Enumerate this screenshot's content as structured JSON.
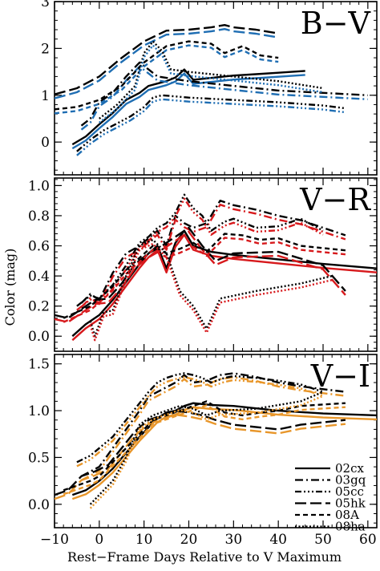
{
  "chart_data": {
    "type": "line",
    "xlabel": "Rest−Frame Days Relative to V Maximum",
    "ylabel": "Color (mag)",
    "xlim": [
      -10,
      62
    ],
    "x_ticks": [
      -10,
      0,
      10,
      20,
      30,
      40,
      50,
      60
    ],
    "x_tick_labels": [
      "−10",
      "0",
      "10",
      "20",
      "30",
      "40",
      "50",
      "60"
    ],
    "grid": false,
    "legend_position": "bottom-right of V−I panel",
    "legend": [
      {
        "name": "02cx",
        "dash": "solid"
      },
      {
        "name": "03gq",
        "dash": "dash-dot"
      },
      {
        "name": "05cc",
        "dash": "dash-dot-dot-dot"
      },
      {
        "name": "05hk",
        "dash": "long-dash"
      },
      {
        "name": "08A",
        "dash": "short-dash"
      },
      {
        "name": "08ha",
        "dash": "dotted"
      }
    ],
    "panels": [
      {
        "label": "B−V",
        "color": "#1f6eb3",
        "ylim": [
          -0.7,
          3.0
        ],
        "y_ticks": [
          0,
          1,
          2,
          3
        ],
        "y_tick_labels": [
          "0",
          "1",
          "2",
          "3"
        ],
        "series": [
          {
            "name": "02cx",
            "x": [
              -6,
              -3,
              0,
              3,
              6,
              9,
              11,
              13,
              15,
              17,
              19,
              21,
              23,
              26,
              30,
              35,
              40,
              46
            ],
            "y": [
              -0.05,
              0.12,
              0.38,
              0.62,
              0.9,
              1.05,
              1.2,
              1.25,
              1.3,
              1.38,
              1.55,
              1.33,
              1.35,
              1.38,
              1.42,
              1.45,
              1.48,
              1.52
            ]
          },
          {
            "name": "03gq",
            "x": [
              -4,
              -2,
              0,
              3,
              6,
              9,
              11,
              13,
              20,
              30,
              40,
              50,
              60
            ],
            "y": [
              0.35,
              0.5,
              0.85,
              1.05,
              1.4,
              1.7,
              1.55,
              1.4,
              1.3,
              1.2,
              1.1,
              1.05,
              1.0
            ]
          },
          {
            "name": "05cc",
            "x": [
              -5,
              -2,
              1,
              4,
              7,
              10,
              12,
              14,
              20,
              30,
              40,
              50,
              55
            ],
            "y": [
              -0.2,
              0.05,
              0.25,
              0.4,
              0.55,
              0.75,
              0.95,
              1.0,
              0.95,
              0.9,
              0.85,
              0.78,
              0.72
            ]
          },
          {
            "name": "05hk",
            "x": [
              -10,
              -5,
              0,
              5,
              10,
              15,
              20,
              25,
              28,
              30,
              35,
              40
            ],
            "y": [
              1.02,
              1.15,
              1.4,
              1.8,
              2.15,
              2.38,
              2.4,
              2.45,
              2.5,
              2.45,
              2.4,
              2.32
            ]
          },
          {
            "name": "08A",
            "x": [
              -10,
              -5,
              0,
              5,
              10,
              15,
              20,
              25,
              28,
              32,
              36,
              40
            ],
            "y": [
              0.7,
              0.75,
              0.9,
              1.2,
              1.7,
              2.05,
              2.15,
              2.1,
              1.9,
              2.05,
              1.85,
              1.8
            ]
          },
          {
            "name": "08ha",
            "x": [
              0,
              4,
              8,
              10,
              12,
              14,
              16,
              20,
              30,
              40,
              50
            ],
            "y": [
              0.5,
              0.8,
              1.2,
              1.9,
              2.15,
              1.95,
              1.55,
              1.5,
              1.4,
              1.3,
              1.15
            ]
          }
        ]
      },
      {
        "label": "V−R",
        "color": "#d7191c",
        "ylim": [
          -0.1,
          1.05
        ],
        "y_ticks": [
          0,
          0.2,
          0.4,
          0.6,
          0.8,
          1.0
        ],
        "y_tick_labels": [
          "0.0",
          "0.2",
          "0.4",
          "0.6",
          "0.8",
          "1.0"
        ],
        "series": [
          {
            "name": "02cx",
            "x": [
              -6,
              -3,
              0,
              3,
              6,
              9,
              11,
              13,
              15,
              17,
              19,
              21,
              25,
              30,
              40,
              50,
              62
            ],
            "y": [
              0.0,
              0.08,
              0.14,
              0.24,
              0.36,
              0.48,
              0.55,
              0.6,
              0.45,
              0.62,
              0.7,
              0.6,
              0.56,
              0.54,
              0.51,
              0.48,
              0.45
            ]
          },
          {
            "name": "03gq",
            "x": [
              -4,
              -2,
              0,
              3,
              6,
              9,
              11,
              13,
              15,
              17,
              19,
              21,
              24,
              27,
              30,
              35,
              40,
              45,
              55
            ],
            "y": [
              0.22,
              0.28,
              0.24,
              0.42,
              0.55,
              0.6,
              0.65,
              0.7,
              0.6,
              0.8,
              0.75,
              0.72,
              0.75,
              0.9,
              0.87,
              0.84,
              0.8,
              0.77,
              0.67
            ]
          },
          {
            "name": "05cc",
            "x": [
              -5,
              -2,
              0,
              3,
              6,
              9,
              11,
              13,
              15,
              17,
              19,
              21,
              23,
              25,
              28,
              30,
              35,
              40,
              45,
              50
            ],
            "y": [
              0.2,
              0.27,
              0.25,
              0.34,
              0.47,
              0.62,
              0.66,
              0.72,
              0.75,
              0.82,
              0.94,
              0.85,
              0.8,
              0.7,
              0.76,
              0.78,
              0.72,
              0.73,
              0.78,
              0.7
            ]
          },
          {
            "name": "05hk",
            "x": [
              -10,
              -7,
              -4,
              -1,
              2,
              5,
              8,
              11,
              14,
              17,
              20,
              23,
              26,
              30,
              40,
              50,
              55
            ],
            "y": [
              0.14,
              0.12,
              0.18,
              0.24,
              0.25,
              0.35,
              0.48,
              0.55,
              0.6,
              0.66,
              0.72,
              0.6,
              0.5,
              0.55,
              0.56,
              0.47,
              0.3
            ]
          },
          {
            "name": "08A",
            "x": [
              -8,
              -5,
              -2,
              0,
              3,
              6,
              9,
              12,
              15,
              18,
              21,
              24,
              28,
              32,
              36,
              40,
              45,
              55
            ],
            "y": [
              0.12,
              0.16,
              0.2,
              0.25,
              0.33,
              0.44,
              0.52,
              0.6,
              0.55,
              0.58,
              0.62,
              0.56,
              0.68,
              0.67,
              0.64,
              0.65,
              0.6,
              0.57
            ]
          },
          {
            "name": "08ha",
            "x": [
              -2,
              -1,
              1,
              3,
              6,
              9,
              12,
              15,
              18,
              21,
              24,
              27,
              35,
              45,
              52
            ],
            "y": [
              0.1,
              0.0,
              0.16,
              0.17,
              0.4,
              0.6,
              0.64,
              0.55,
              0.3,
              0.2,
              0.05,
              0.25,
              0.3,
              0.35,
              0.4
            ]
          }
        ]
      },
      {
        "label": "V−I",
        "color": "#e8962a",
        "ylim": [
          -0.25,
          1.6
        ],
        "y_ticks": [
          0,
          0.5,
          1.0,
          1.5
        ],
        "y_tick_labels": [
          "0.0",
          "0.5",
          "1.0",
          "1.5"
        ],
        "series": [
          {
            "name": "02cx",
            "x": [
              -6,
              -3,
              0,
              3,
              6,
              9,
              11,
              13,
              15,
              17,
              19,
              21,
              25,
              30,
              40,
              50,
              62
            ],
            "y": [
              0.1,
              0.15,
              0.25,
              0.38,
              0.55,
              0.72,
              0.82,
              0.92,
              0.98,
              1.0,
              1.05,
              1.08,
              1.06,
              1.05,
              1.0,
              0.97,
              0.95
            ]
          },
          {
            "name": "03gq",
            "x": [
              -4,
              -2,
              0,
              3,
              6,
              9,
              11,
              13,
              15,
              17,
              19,
              21,
              24,
              27,
              30,
              35,
              40,
              45,
              55
            ],
            "y": [
              0.3,
              0.35,
              0.4,
              0.6,
              0.8,
              1.0,
              1.15,
              1.2,
              1.25,
              1.3,
              1.38,
              1.3,
              1.32,
              1.38,
              1.4,
              1.36,
              1.3,
              1.26,
              1.2
            ]
          },
          {
            "name": "05cc",
            "x": [
              -5,
              -2,
              0,
              3,
              6,
              9,
              11,
              13,
              15,
              17,
              19,
              21,
              23,
              25,
              28,
              30,
              35,
              40,
              45,
              50
            ],
            "y": [
              0.45,
              0.52,
              0.6,
              0.72,
              0.9,
              1.08,
              1.2,
              1.3,
              1.35,
              1.38,
              1.4,
              1.38,
              1.35,
              1.3,
              1.35,
              1.37,
              1.35,
              1.32,
              1.28,
              1.2
            ]
          },
          {
            "name": "05hk",
            "x": [
              -10,
              -7,
              -4,
              -1,
              2,
              5,
              8,
              11,
              14,
              17,
              20,
              23,
              26,
              30,
              40,
              45,
              55
            ],
            "y": [
              0.1,
              0.15,
              0.3,
              0.35,
              0.42,
              0.6,
              0.78,
              0.9,
              0.95,
              1.0,
              0.98,
              0.95,
              0.9,
              0.85,
              0.8,
              0.85,
              0.9
            ]
          },
          {
            "name": "08A",
            "x": [
              -8,
              -5,
              -2,
              0,
              3,
              6,
              9,
              12,
              15,
              18,
              21,
              24,
              28,
              32,
              36,
              40,
              45,
              55
            ],
            "y": [
              0.15,
              0.2,
              0.25,
              0.3,
              0.45,
              0.6,
              0.75,
              0.9,
              0.95,
              1.0,
              1.05,
              1.1,
              0.98,
              0.95,
              0.98,
              1.0,
              1.05,
              1.08
            ]
          },
          {
            "name": "08ha",
            "x": [
              -2,
              0,
              3,
              6,
              9,
              12,
              15,
              18,
              21,
              24,
              27,
              35,
              45,
              50
            ],
            "y": [
              0.0,
              0.1,
              0.25,
              0.5,
              0.85,
              0.95,
              1.0,
              1.05,
              1.02,
              0.95,
              1.0,
              1.02,
              1.1,
              1.2
            ]
          }
        ]
      }
    ]
  }
}
